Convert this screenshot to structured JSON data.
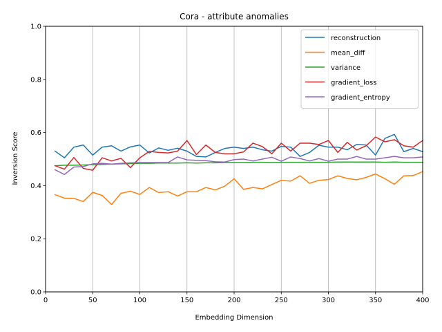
{
  "chart_data": {
    "type": "line",
    "title": "Cora - attribute anomalies",
    "xlabel": "Embedding Dimension",
    "ylabel": "Inversion Score",
    "xlim": [
      0,
      400
    ],
    "ylim": [
      0.0,
      1.0
    ],
    "x_ticks": [
      "0",
      "50",
      "100",
      "150",
      "200",
      "250",
      "300",
      "350",
      "400"
    ],
    "y_ticks": [
      "0.0",
      "0.2",
      "0.4",
      "0.6",
      "0.8",
      "1.0"
    ],
    "grid": "x-major",
    "legend_position": "top-right",
    "x": [
      10,
      20,
      30,
      40,
      50,
      60,
      70,
      80,
      90,
      100,
      110,
      120,
      130,
      140,
      150,
      160,
      170,
      180,
      190,
      200,
      210,
      220,
      230,
      240,
      250,
      260,
      270,
      280,
      290,
      300,
      310,
      320,
      330,
      340,
      350,
      360,
      370,
      380,
      390,
      400
    ],
    "series": [
      {
        "name": "reconstruction",
        "color": "#1f77b4",
        "values": [
          0.53,
          0.505,
          0.545,
          0.553,
          0.515,
          0.545,
          0.55,
          0.53,
          0.546,
          0.553,
          0.523,
          0.542,
          0.533,
          0.541,
          0.53,
          0.51,
          0.508,
          0.525,
          0.54,
          0.545,
          0.54,
          0.545,
          0.535,
          0.53,
          0.548,
          0.545,
          0.51,
          0.525,
          0.552,
          0.545,
          0.545,
          0.535,
          0.555,
          0.553,
          0.515,
          0.578,
          0.593,
          0.528,
          0.54,
          0.528
        ]
      },
      {
        "name": "mean_diff",
        "color": "#ff7f0e",
        "values": [
          0.366,
          0.353,
          0.352,
          0.34,
          0.375,
          0.363,
          0.329,
          0.371,
          0.379,
          0.367,
          0.393,
          0.374,
          0.377,
          0.361,
          0.377,
          0.377,
          0.393,
          0.384,
          0.398,
          0.426,
          0.386,
          0.393,
          0.388,
          0.404,
          0.42,
          0.417,
          0.437,
          0.409,
          0.42,
          0.423,
          0.437,
          0.427,
          0.422,
          0.431,
          0.444,
          0.426,
          0.405,
          0.437,
          0.438,
          0.453
        ]
      },
      {
        "name": "variance",
        "color": "#2ca02c",
        "values": [
          0.475,
          0.477,
          0.477,
          0.478,
          0.479,
          0.48,
          0.481,
          0.482,
          0.483,
          0.484,
          0.484,
          0.485,
          0.485,
          0.485,
          0.486,
          0.485,
          0.486,
          0.486,
          0.487,
          0.487,
          0.487,
          0.488,
          0.488,
          0.487,
          0.488,
          0.488,
          0.488,
          0.488,
          0.488,
          0.488,
          0.489,
          0.489,
          0.489,
          0.489,
          0.489,
          0.488,
          0.489,
          0.488,
          0.488,
          0.488
        ]
      },
      {
        "name": "gradient_loss",
        "color": "#d62728",
        "values": [
          0.475,
          0.462,
          0.506,
          0.465,
          0.458,
          0.505,
          0.493,
          0.503,
          0.468,
          0.505,
          0.529,
          0.525,
          0.523,
          0.53,
          0.57,
          0.517,
          0.553,
          0.525,
          0.52,
          0.52,
          0.527,
          0.56,
          0.547,
          0.52,
          0.56,
          0.53,
          0.56,
          0.56,
          0.555,
          0.57,
          0.525,
          0.563,
          0.534,
          0.55,
          0.583,
          0.565,
          0.573,
          0.55,
          0.545,
          0.57
        ]
      },
      {
        "name": "gradient_entropy",
        "color": "#9467bd",
        "values": [
          0.46,
          0.442,
          0.47,
          0.472,
          0.482,
          0.484,
          0.481,
          0.484,
          0.486,
          0.487,
          0.487,
          0.487,
          0.487,
          0.508,
          0.497,
          0.495,
          0.494,
          0.49,
          0.489,
          0.498,
          0.5,
          0.493,
          0.5,
          0.507,
          0.492,
          0.508,
          0.502,
          0.493,
          0.502,
          0.492,
          0.5,
          0.5,
          0.51,
          0.5,
          0.5,
          0.505,
          0.51,
          0.505,
          0.505,
          0.508
        ]
      }
    ]
  }
}
